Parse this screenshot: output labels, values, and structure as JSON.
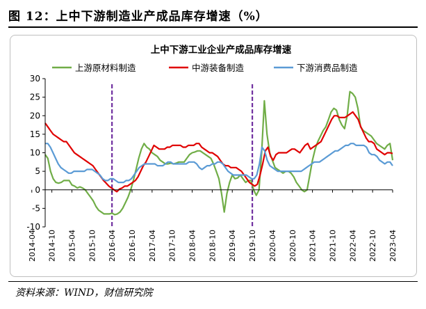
{
  "figure_title": "图 12：上中下游制造业产成品库存增速（%）",
  "source": "资料来源：WIND，财信研究院",
  "chart_data": {
    "type": "line",
    "title": "上中下游工业企业产成品库存增速",
    "ylim": [
      -10,
      30
    ],
    "yticks": [
      -10,
      -5,
      0,
      5,
      10,
      15,
      20,
      25,
      30
    ],
    "xticks": [
      "2014-04",
      "2014-10",
      "2015-04",
      "2015-10",
      "2016-04",
      "2016-10",
      "2017-04",
      "2017-10",
      "2018-04",
      "2018-10",
      "2019-04",
      "2019-10",
      "2020-04",
      "2020-10",
      "2021-04",
      "2021-10",
      "2022-04",
      "2022-10",
      "2023-04"
    ],
    "x_start": "2014-08",
    "x_end": "2023-04",
    "legend_position": "top",
    "vlines": [
      "2016-04",
      "2019-10"
    ],
    "vline_color": "#7030a0",
    "series": [
      {
        "name": "上游原材料制造",
        "color": "#70ad47",
        "values": [
          9.5,
          8.5,
          5,
          3,
          2,
          1.8,
          2,
          2.5,
          2.5,
          2.5,
          1.3,
          1,
          0.5,
          0.8,
          0.5,
          0,
          -1,
          -2,
          -3,
          -4.5,
          -5.5,
          -6,
          -6.5,
          -6.5,
          -6.5,
          -6.3,
          -6.7,
          -6.5,
          -6,
          -5,
          -3.5,
          -2,
          0,
          2.5,
          5.5,
          8.5,
          11,
          12.5,
          11.5,
          11,
          10,
          9.5,
          9,
          8,
          7.5,
          7,
          7,
          7.2,
          7,
          7.2,
          7.5,
          7.5,
          7.5,
          8.5,
          9.5,
          10,
          10.2,
          10.5,
          10.5,
          10,
          9.5,
          9,
          8.5,
          7,
          5,
          3,
          -1,
          -6,
          -1,
          2,
          4,
          3,
          3.2,
          4,
          3,
          2,
          2.5,
          2.5,
          0,
          -1.5,
          0,
          10,
          24,
          15,
          10,
          8,
          6,
          5.5,
          5,
          4.5,
          5,
          5,
          4.5,
          3.5,
          2,
          1,
          0,
          -0.5,
          0,
          4,
          8,
          11,
          13,
          14.5,
          16,
          17,
          19,
          21,
          22,
          21.5,
          19,
          17.5,
          16.5,
          20,
          26.5,
          26,
          25,
          22,
          17,
          16,
          15.5,
          15,
          14.5,
          13.5,
          12.5,
          12,
          11.5,
          11,
          12,
          12.5,
          8
        ]
      },
      {
        "name": "中游装备制造",
        "color": "#e00000",
        "values": [
          18,
          17,
          16,
          15,
          14.5,
          14,
          13.5,
          13,
          13,
          12,
          11,
          10,
          9.5,
          9,
          8.5,
          8,
          7.5,
          7,
          6.5,
          5.5,
          4.5,
          3.5,
          2.5,
          1.8,
          1,
          0.5,
          0,
          -0.5,
          0.2,
          0.5,
          1,
          1,
          1.5,
          2,
          2.5,
          3.5,
          5,
          6.5,
          7.5,
          9,
          10.5,
          12,
          11.5,
          11,
          11,
          11,
          11.5,
          11.5,
          12,
          12,
          12,
          12,
          11.5,
          11.5,
          12,
          12,
          12,
          12.5,
          12.5,
          11.5,
          11,
          10.5,
          10,
          10,
          9.5,
          9,
          8,
          7,
          6.5,
          6.5,
          6,
          6,
          6,
          5.5,
          5,
          4,
          3,
          2,
          1.5,
          1,
          1.5,
          4,
          7,
          10.5,
          11.5,
          9,
          8,
          9.5,
          10,
          10,
          10,
          10,
          10.5,
          11,
          11,
          10.5,
          10,
          11,
          12,
          12.5,
          11,
          11.5,
          12,
          12.5,
          13,
          14.5,
          16,
          17.5,
          19,
          20,
          20,
          19.5,
          19.5,
          19.5,
          20,
          20.5,
          21,
          20,
          19,
          17,
          15.5,
          14,
          13,
          13,
          12.5,
          11,
          10.5,
          10,
          9.5,
          10,
          10,
          9.8
        ]
      },
      {
        "name": "下游消费品制造",
        "color": "#5b9bd5",
        "values": [
          12.5,
          12.5,
          11.5,
          10,
          8.5,
          7,
          6,
          5.5,
          5,
          4.5,
          4.5,
          5,
          5,
          5,
          5,
          5,
          5.5,
          5.5,
          5.5,
          5,
          4.5,
          4,
          3,
          2.5,
          2.5,
          3,
          3,
          2.5,
          2,
          2,
          2,
          2.5,
          2.5,
          3,
          4,
          5,
          6,
          6.5,
          7,
          7,
          7,
          7,
          7,
          6.5,
          6.5,
          6.5,
          7,
          7.5,
          7.5,
          7,
          7,
          7,
          7,
          7,
          7,
          7.5,
          7.5,
          7.5,
          7,
          6,
          5.5,
          6,
          6.5,
          6.5,
          7,
          7,
          7.5,
          7.5,
          7,
          6,
          5,
          4.5,
          4,
          4,
          4,
          4,
          4,
          4,
          3.5,
          3,
          3,
          4,
          7,
          11.5,
          10.5,
          8,
          6.5,
          6,
          5.5,
          5,
          5,
          5,
          5,
          5,
          5,
          5,
          5,
          5,
          5,
          5.5,
          6,
          6.5,
          7,
          7.5,
          7.5,
          7.5,
          8,
          8.5,
          9,
          9.5,
          10,
          10.5,
          10.5,
          11,
          11.5,
          12,
          12,
          12.5,
          12.5,
          12,
          12,
          12,
          12,
          11.5,
          10,
          9.5,
          9.5,
          9,
          8,
          7.5,
          7,
          7.5,
          7.5,
          6.5
        ]
      }
    ]
  }
}
